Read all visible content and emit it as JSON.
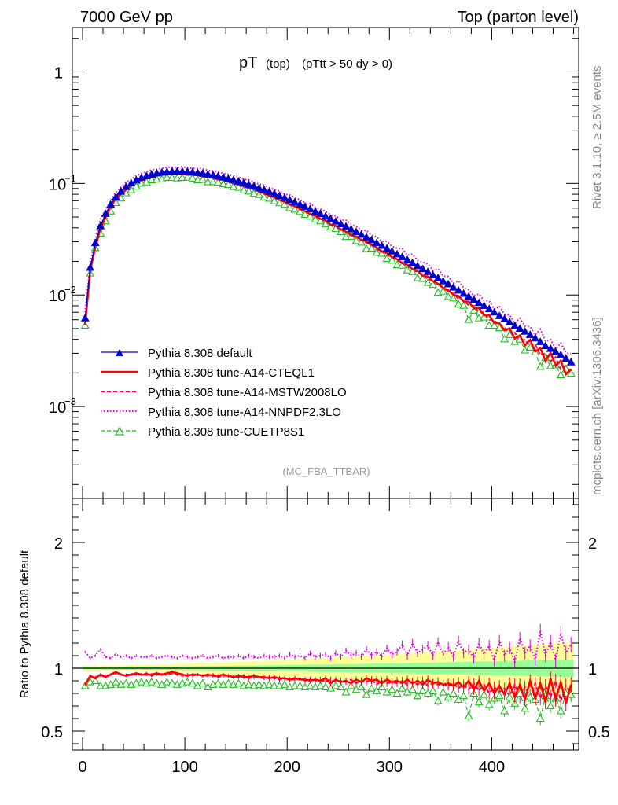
{
  "header": {
    "left": "7000 GeV pp",
    "right": "Top (parton level)"
  },
  "side_labels": {
    "rivet": "Rivet 3.1.10, ≥ 2.5M events",
    "mcplots": "mcplots.cern.ch [arXiv:1306.3436]"
  },
  "colors": {
    "default": "#0000cc",
    "cteql1": "#ff0000",
    "mstw": "#ff0055",
    "nnpdf": "#dd00dd",
    "cuetp8s1": "#22bb22",
    "band_yellow": "#ffff99",
    "band_green": "#99ff99"
  },
  "chart_data": [
    {
      "type": "line",
      "title": "pT",
      "title_sub": "(top)",
      "title_cut": "(pTtt > 50 dy > 0)",
      "watermark": "(MC_FBA_TTBAR)",
      "y_scale": "log",
      "ylim": [
        0.00015,
        2.5
      ],
      "xlim": [
        -10,
        485
      ],
      "yticks": [
        {
          "v": 1,
          "label": "1"
        },
        {
          "v": 0.1,
          "label": "10",
          "exp": "−1"
        },
        {
          "v": 0.01,
          "label": "10",
          "exp": "−2"
        },
        {
          "v": 0.001,
          "label": "10",
          "exp": "−3"
        }
      ],
      "legend_position": "bottom-left",
      "series": [
        {
          "name": "Pythia 8.308 default",
          "color_key": "default",
          "style": "solid",
          "marker": "filled-triangle"
        },
        {
          "name": "Pythia 8.308 tune-A14-CTEQL1",
          "color_key": "cteql1",
          "style": "solid-thick",
          "marker": "none"
        },
        {
          "name": "Pythia 8.308 tune-A14-MSTW2008LO",
          "color_key": "mstw",
          "style": "dashed",
          "marker": "none"
        },
        {
          "name": "Pythia 8.308 tune-A14-NNPDF2.3LO",
          "color_key": "nnpdf",
          "style": "dotted",
          "marker": "none"
        },
        {
          "name": "Pythia 8.308 tune-CUETP8S1",
          "color_key": "cuetp8s1",
          "style": "dashed",
          "marker": "open-triangle"
        }
      ],
      "x": [
        2.5,
        7.5,
        12.5,
        17.5,
        22.5,
        27.5,
        32.5,
        37.5,
        42.5,
        47.5,
        52.5,
        57.5,
        62.5,
        67.5,
        72.5,
        77.5,
        82.5,
        87.5,
        92.5,
        97.5,
        102.5,
        107.5,
        112.5,
        117.5,
        122.5,
        127.5,
        132.5,
        137.5,
        142.5,
        147.5,
        152.5,
        157.5,
        162.5,
        167.5,
        172.5,
        177.5,
        182.5,
        187.5,
        192.5,
        197.5,
        202.5,
        207.5,
        212.5,
        217.5,
        222.5,
        227.5,
        232.5,
        237.5,
        242.5,
        247.5,
        252.5,
        257.5,
        262.5,
        267.5,
        272.5,
        277.5,
        282.5,
        287.5,
        292.5,
        297.5,
        302.5,
        307.5,
        312.5,
        317.5,
        322.5,
        327.5,
        332.5,
        337.5,
        342.5,
        347.5,
        352.5,
        357.5,
        362.5,
        367.5,
        372.5,
        377.5,
        382.5,
        387.5,
        392.5,
        397.5,
        402.5,
        407.5,
        412.5,
        417.5,
        422.5,
        427.5,
        432.5,
        437.5,
        442.5,
        447.5,
        452.5,
        457.5,
        462.5,
        467.5,
        472.5,
        477.5
      ],
      "default_y": [
        0.0062,
        0.0176,
        0.0293,
        0.0415,
        0.0535,
        0.0648,
        0.0753,
        0.0847,
        0.0931,
        0.1005,
        0.1069,
        0.1123,
        0.1168,
        0.1205,
        0.1234,
        0.1255,
        0.127,
        0.1279,
        0.1282,
        0.128,
        0.1273,
        0.1263,
        0.1248,
        0.1231,
        0.121,
        0.1187,
        0.1161,
        0.1134,
        0.1105,
        0.1074,
        0.1043,
        0.1011,
        0.0977,
        0.0944,
        0.091,
        0.0876,
        0.0843,
        0.0809,
        0.0776,
        0.0743,
        0.0711,
        0.068,
        0.0649,
        0.0619,
        0.059,
        0.0561,
        0.0534,
        0.0507,
        0.0482,
        0.0457,
        0.0433,
        0.0411,
        0.0389,
        0.0368,
        0.0348,
        0.0329,
        0.0311,
        0.0293,
        0.0277,
        0.0261,
        0.0246,
        0.0232,
        0.0219,
        0.0206,
        0.0194,
        0.0182,
        0.0171,
        0.0161,
        0.0151,
        0.0142,
        0.0133,
        0.0125,
        0.0117,
        0.011,
        0.0103,
        0.0097,
        0.0091,
        0.0085,
        0.008,
        0.0075,
        0.007,
        0.0065,
        0.0061,
        0.0057,
        0.0053,
        0.005,
        0.0047,
        0.0044,
        0.0041,
        0.0038,
        0.0035,
        0.0033,
        0.0031,
        0.0029,
        0.0027,
        0.0025
      ],
      "bottom_y": 0.00022
    },
    {
      "type": "line",
      "ylabel": "Ratio to Pythia 8.308 default",
      "ylim": [
        0.35,
        2.35
      ],
      "xlim": [
        -10,
        485
      ],
      "yticks": [
        {
          "v": 0.5,
          "label": "0.5"
        },
        {
          "v": 1,
          "label": "1"
        },
        {
          "v": 2,
          "label": "2"
        }
      ],
      "xticks": [
        {
          "v": 0,
          "label": "0"
        },
        {
          "v": 100,
          "label": "100"
        },
        {
          "v": 200,
          "label": "200"
        },
        {
          "v": 300,
          "label": "300"
        },
        {
          "v": 400,
          "label": "400"
        }
      ],
      "reference_line": 1,
      "band_x_start": 0,
      "band_x_end": 480,
      "band_yellow_halfwidth": [
        0.02,
        0.21
      ],
      "band_green_halfwidth": [
        0.01,
        0.07
      ],
      "ratio_cteql1": [
        0.87,
        0.94,
        0.92,
        0.95,
        0.93,
        0.95,
        0.97,
        0.95,
        0.94,
        0.95,
        0.96,
        0.95,
        0.95,
        0.95,
        0.96,
        0.95,
        0.96,
        0.97,
        0.96,
        0.95,
        0.94,
        0.95,
        0.95,
        0.94,
        0.95,
        0.94,
        0.94,
        0.95,
        0.94,
        0.93,
        0.94,
        0.93,
        0.93,
        0.94,
        0.93,
        0.93,
        0.92,
        0.93,
        0.92,
        0.92,
        0.91,
        0.92,
        0.91,
        0.91,
        0.9,
        0.91,
        0.9,
        0.92,
        0.88,
        0.91,
        0.89,
        0.9,
        0.88,
        0.91,
        0.89,
        0.92,
        0.9,
        0.91,
        0.88,
        0.91,
        0.89,
        0.9,
        0.88,
        0.91,
        0.88,
        0.9,
        0.87,
        0.91,
        0.88,
        0.89,
        0.87,
        0.88,
        0.86,
        0.89,
        0.85,
        0.9,
        0.83,
        0.9,
        0.82,
        0.88,
        0.8,
        0.86,
        0.79,
        0.88,
        0.77,
        0.87,
        0.75,
        0.9,
        0.76,
        0.88,
        0.73,
        0.92,
        0.75,
        0.89,
        0.72,
        0.87
      ],
      "ratio_mstw": [
        0.88,
        0.93,
        0.93,
        0.94,
        0.94,
        0.95,
        0.96,
        0.95,
        0.95,
        0.95,
        0.95,
        0.95,
        0.96,
        0.94,
        0.95,
        0.95,
        0.95,
        0.96,
        0.95,
        0.94,
        0.95,
        0.94,
        0.95,
        0.94,
        0.94,
        0.95,
        0.93,
        0.94,
        0.94,
        0.93,
        0.93,
        0.94,
        0.92,
        0.93,
        0.93,
        0.92,
        0.93,
        0.92,
        0.91,
        0.92,
        0.91,
        0.91,
        0.92,
        0.9,
        0.91,
        0.9,
        0.91,
        0.89,
        0.91,
        0.89,
        0.9,
        0.89,
        0.91,
        0.88,
        0.9,
        0.89,
        0.91,
        0.87,
        0.9,
        0.88,
        0.89,
        0.88,
        0.9,
        0.87,
        0.89,
        0.87,
        0.9,
        0.86,
        0.88,
        0.87,
        0.87,
        0.86,
        0.88,
        0.84,
        0.87,
        0.83,
        0.88,
        0.82,
        0.87,
        0.8,
        0.85,
        0.81,
        0.84,
        0.78,
        0.87,
        0.77,
        0.85,
        0.78,
        0.88,
        0.76,
        0.86,
        0.77,
        0.9,
        0.74,
        0.86,
        0.8
      ],
      "ratio_nnpdf": [
        1.13,
        1.08,
        1.1,
        1.15,
        1.09,
        1.08,
        1.11,
        1.09,
        1.1,
        1.08,
        1.1,
        1.09,
        1.09,
        1.1,
        1.08,
        1.09,
        1.1,
        1.09,
        1.08,
        1.1,
        1.09,
        1.08,
        1.09,
        1.1,
        1.08,
        1.09,
        1.1,
        1.08,
        1.09,
        1.09,
        1.1,
        1.08,
        1.1,
        1.09,
        1.08,
        1.1,
        1.09,
        1.09,
        1.1,
        1.08,
        1.11,
        1.09,
        1.1,
        1.08,
        1.12,
        1.09,
        1.1,
        1.11,
        1.08,
        1.12,
        1.09,
        1.14,
        1.1,
        1.12,
        1.09,
        1.15,
        1.1,
        1.13,
        1.09,
        1.16,
        1.11,
        1.13,
        1.19,
        1.1,
        1.2,
        1.12,
        1.15,
        1.18,
        1.1,
        1.21,
        1.11,
        1.17,
        1.09,
        1.22,
        1.12,
        1.15,
        1.08,
        1.2,
        1.11,
        1.18,
        1.06,
        1.22,
        1.1,
        1.16,
        1.05,
        1.24,
        1.12,
        1.18,
        1.07,
        1.3,
        1.1,
        1.21,
        1.06,
        1.28,
        1.12,
        1.19
      ],
      "ratio_cuetp8s1": [
        0.86,
        0.89,
        0.9,
        0.86,
        0.86,
        0.87,
        0.89,
        0.87,
        0.88,
        0.87,
        0.88,
        0.89,
        0.88,
        0.89,
        0.88,
        0.87,
        0.89,
        0.88,
        0.87,
        0.88,
        0.89,
        0.88,
        0.86,
        0.88,
        0.85,
        0.87,
        0.88,
        0.87,
        0.88,
        0.87,
        0.88,
        0.86,
        0.87,
        0.86,
        0.87,
        0.86,
        0.87,
        0.86,
        0.86,
        0.87,
        0.85,
        0.86,
        0.86,
        0.85,
        0.86,
        0.85,
        0.86,
        0.85,
        0.84,
        0.86,
        0.85,
        0.81,
        0.86,
        0.83,
        0.85,
        0.79,
        0.84,
        0.82,
        0.85,
        0.81,
        0.83,
        0.8,
        0.84,
        0.81,
        0.83,
        0.78,
        0.82,
        0.8,
        0.82,
        0.74,
        0.81,
        0.77,
        0.8,
        0.75,
        0.78,
        0.62,
        0.8,
        0.73,
        0.79,
        0.71,
        0.76,
        0.78,
        0.66,
        0.77,
        0.72,
        0.8,
        0.68,
        0.77,
        0.75,
        0.6,
        0.78,
        0.7,
        0.76,
        0.66,
        0.8,
        0.79
      ]
    }
  ]
}
